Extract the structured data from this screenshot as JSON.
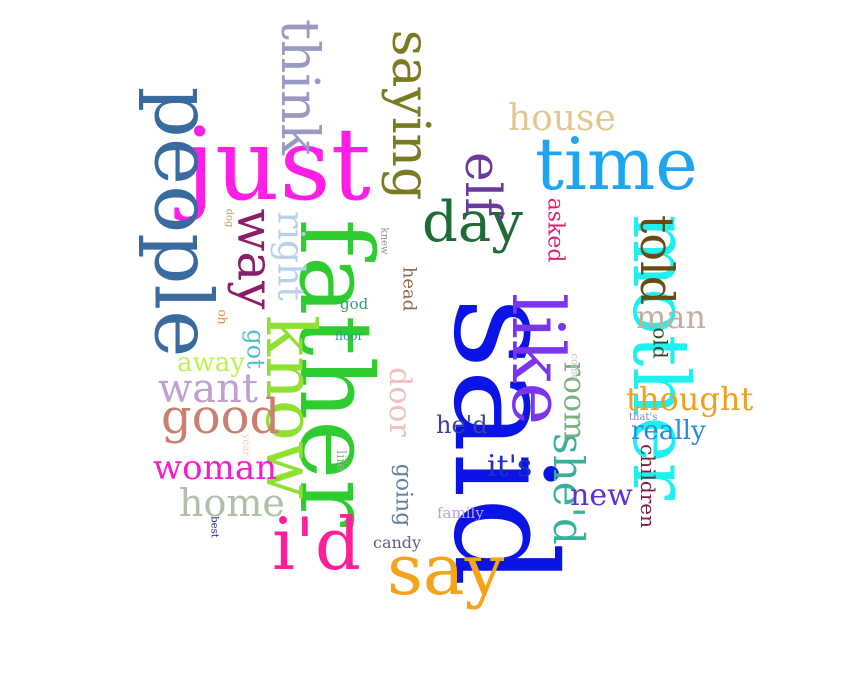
{
  "words": [
    {
      "text": "said",
      "color": "#0a14e6",
      "rotated": true
    },
    {
      "text": "father",
      "color": "#2ecc2e",
      "rotated": true
    },
    {
      "text": "just",
      "color": "#ff1ee6",
      "rotated": false
    },
    {
      "text": "people",
      "color": "#3a6b9e",
      "rotated": true
    },
    {
      "text": "mother",
      "color": "#1ef0f0",
      "rotated": true
    },
    {
      "text": "time",
      "color": "#1ea5ef",
      "rotated": false
    },
    {
      "text": "like",
      "color": "#7b35f0",
      "rotated": true
    },
    {
      "text": "know",
      "color": "#90e032",
      "rotated": true
    },
    {
      "text": "say",
      "color": "#f5a31a",
      "rotated": false
    },
    {
      "text": "i'd",
      "color": "#ff1e9a",
      "rotated": false
    },
    {
      "text": "day",
      "color": "#1e6b35",
      "rotated": false
    },
    {
      "text": "saying",
      "color": "#7a7a22",
      "rotated": true
    },
    {
      "text": "think",
      "color": "#9a9ac0",
      "rotated": true
    },
    {
      "text": "elf",
      "color": "#6a3a9a",
      "rotated": true
    },
    {
      "text": "way",
      "color": "#8a1e6b",
      "rotated": true
    },
    {
      "text": "told",
      "color": "#6b4a12",
      "rotated": true
    },
    {
      "text": "good",
      "color": "#c98070",
      "rotated": false
    },
    {
      "text": "she'd",
      "color": "#3ab09a",
      "rotated": true
    },
    {
      "text": "home",
      "color": "#b0c0a8",
      "rotated": false
    },
    {
      "text": "want",
      "color": "#c0a0d0",
      "rotated": false
    },
    {
      "text": "woman",
      "color": "#f020c8",
      "rotated": false
    },
    {
      "text": "house",
      "color": "#e0c890",
      "rotated": false
    },
    {
      "text": "right",
      "color": "#b8d0e8",
      "rotated": true
    },
    {
      "text": "thought",
      "color": "#f0a020",
      "rotated": false
    },
    {
      "text": "room",
      "color": "#7ab080",
      "rotated": true
    },
    {
      "text": "man",
      "color": "#c0b0a0",
      "rotated": false
    },
    {
      "text": "door",
      "color": "#f0c0c0",
      "rotated": true
    },
    {
      "text": "new",
      "color": "#6030d0",
      "rotated": false
    },
    {
      "text": "it's",
      "color": "#1e30c8",
      "rotated": false
    },
    {
      "text": "really",
      "color": "#2a8ae0",
      "rotated": false
    },
    {
      "text": "away",
      "color": "#c0f050",
      "rotated": false
    },
    {
      "text": "got",
      "color": "#50c0d0",
      "rotated": true
    },
    {
      "text": "he'd",
      "color": "#4040a0",
      "rotated": false
    },
    {
      "text": "going",
      "color": "#6080a0",
      "rotated": true
    },
    {
      "text": "asked",
      "color": "#e02070",
      "rotated": true
    },
    {
      "text": "children",
      "color": "#802040",
      "rotated": true
    },
    {
      "text": "old",
      "color": "#2a4a2a",
      "rotated": true
    },
    {
      "text": "head",
      "color": "#8a6a50",
      "rotated": true
    },
    {
      "text": "candy",
      "color": "#606080",
      "rotated": false
    },
    {
      "text": "family",
      "color": "#c0a0e0",
      "rotated": false
    },
    {
      "text": "god",
      "color": "#30a070",
      "rotated": false
    },
    {
      "text": "life",
      "color": "#a0b0a0",
      "rotated": true
    },
    {
      "text": "floor",
      "color": "#20a0a0",
      "rotated": false
    },
    {
      "text": "oh",
      "color": "#f08040",
      "rotated": true
    },
    {
      "text": "year",
      "color": "#f0d0c0",
      "rotated": true
    },
    {
      "text": "that's",
      "color": "#8080c0",
      "rotated": false
    },
    {
      "text": "come",
      "color": "#c0c0c0",
      "rotated": true
    },
    {
      "text": "knew",
      "color": "#909090",
      "rotated": true
    },
    {
      "text": "dog",
      "color": "#c0a060",
      "rotated": true
    },
    {
      "text": "best",
      "color": "#1a1a80",
      "rotated": true
    }
  ]
}
